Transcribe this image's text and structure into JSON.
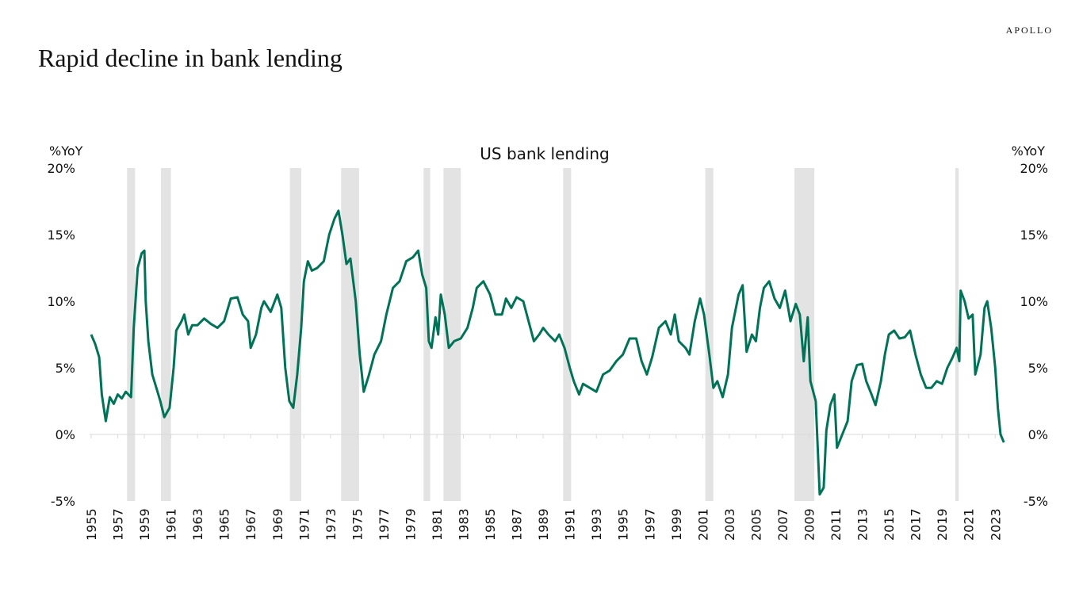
{
  "brand": "APOLLO",
  "chart_data": {
    "type": "line",
    "title": "Rapid decline in bank lending",
    "subtitle": "US bank lending",
    "y_label": "%YoY",
    "y2_label": "%YoY",
    "color": "#007356",
    "recession_color": "#e3e3e3",
    "recessions": [
      [
        1957.7,
        1958.3
      ],
      [
        1960.25,
        1961.0
      ],
      [
        1969.95,
        1970.8
      ],
      [
        1973.8,
        1975.15
      ],
      [
        1980.0,
        1980.5
      ],
      [
        1981.5,
        1982.8
      ],
      [
        1990.5,
        1991.1
      ],
      [
        2001.2,
        2001.8
      ],
      [
        2007.9,
        2009.4
      ],
      [
        2020.0,
        2020.25
      ]
    ],
    "xlim": [
      1955,
      2023.7
    ],
    "xticks": [
      1955,
      1957,
      1959,
      1961,
      1963,
      1965,
      1967,
      1969,
      1971,
      1973,
      1975,
      1977,
      1979,
      1981,
      1983,
      1985,
      1987,
      1989,
      1991,
      1993,
      1995,
      1997,
      1999,
      2001,
      2003,
      2005,
      2007,
      2009,
      2011,
      2013,
      2015,
      2017,
      2019,
      2021,
      2023
    ],
    "ylim": [
      -5,
      20
    ],
    "yticks": [
      {
        "value": -5,
        "label": "-5%"
      },
      {
        "value": 0,
        "label": "0%"
      },
      {
        "value": 5,
        "label": "5%"
      },
      {
        "value": 10,
        "label": "10%"
      },
      {
        "value": 15,
        "label": "15%"
      },
      {
        "value": 20,
        "label": "20%"
      }
    ],
    "x": [
      1955.0,
      1955.3,
      1955.6,
      1955.8,
      1956.1,
      1956.4,
      1956.7,
      1957.0,
      1957.3,
      1957.6,
      1958.0,
      1958.2,
      1958.5,
      1958.8,
      1959.0,
      1959.1,
      1959.3,
      1959.6,
      1959.9,
      1960.2,
      1960.5,
      1960.9,
      1961.2,
      1961.4,
      1961.8,
      1962.0,
      1962.3,
      1962.6,
      1963.0,
      1963.5,
      1964.0,
      1964.5,
      1965.0,
      1965.5,
      1966.0,
      1966.4,
      1966.8,
      1967.0,
      1967.4,
      1967.8,
      1968.0,
      1968.5,
      1969.0,
      1969.3,
      1969.6,
      1969.9,
      1970.2,
      1970.5,
      1970.8,
      1971.0,
      1971.3,
      1971.6,
      1972.0,
      1972.5,
      1972.9,
      1973.3,
      1973.6,
      1973.9,
      1974.2,
      1974.5,
      1974.9,
      1975.2,
      1975.5,
      1975.9,
      1976.3,
      1976.8,
      1977.2,
      1977.7,
      1978.2,
      1978.7,
      1979.2,
      1979.6,
      1979.9,
      1980.2,
      1980.4,
      1980.6,
      1980.9,
      1981.1,
      1981.3,
      1981.6,
      1981.9,
      1982.3,
      1982.8,
      1983.3,
      1983.7,
      1984.0,
      1984.5,
      1985.0,
      1985.4,
      1985.9,
      1986.2,
      1986.6,
      1987.0,
      1987.5,
      1987.9,
      1988.3,
      1988.7,
      1989.0,
      1989.4,
      1989.9,
      1990.2,
      1990.6,
      1991.0,
      1991.3,
      1991.7,
      1992.0,
      1992.5,
      1993.0,
      1993.5,
      1994.0,
      1994.5,
      1995.0,
      1995.5,
      1996.0,
      1996.4,
      1996.8,
      1997.2,
      1997.7,
      1998.2,
      1998.6,
      1998.9,
      1999.2,
      1999.7,
      2000.0,
      2000.4,
      2000.8,
      2001.1,
      2001.5,
      2001.8,
      2002.1,
      2002.5,
      2002.9,
      2003.2,
      2003.7,
      2004.0,
      2004.3,
      2004.7,
      2005.0,
      2005.3,
      2005.6,
      2006.0,
      2006.4,
      2006.8,
      2007.2,
      2007.6,
      2008.0,
      2008.3,
      2008.6,
      2008.9,
      2009.1,
      2009.5,
      2009.8,
      2010.1,
      2010.3,
      2010.6,
      2010.9,
      2011.1,
      2011.5,
      2011.9,
      2012.2,
      2012.6,
      2013.0,
      2013.3,
      2013.7,
      2014.0,
      2014.4,
      2014.7,
      2015.0,
      2015.4,
      2015.8,
      2016.2,
      2016.6,
      2017.0,
      2017.4,
      2017.8,
      2018.2,
      2018.6,
      2019.0,
      2019.4,
      2019.8,
      2020.1,
      2020.3,
      2020.4,
      2020.7,
      2021.0,
      2021.3,
      2021.5,
      2021.9,
      2022.2,
      2022.4,
      2022.7,
      2023.0,
      2023.2,
      2023.4,
      2023.65
    ],
    "series": [
      {
        "name": "US bank lending",
        "color": "#007356",
        "values": [
          7.5,
          6.8,
          5.8,
          3,
          1,
          2.8,
          2.3,
          3,
          2.7,
          3.2,
          2.8,
          8,
          12.5,
          13.6,
          13.8,
          10,
          7,
          4.5,
          3.5,
          2.5,
          1.3,
          2,
          5,
          7.8,
          8.5,
          9,
          7.5,
          8.2,
          8.2,
          8.7,
          8.3,
          8.0,
          8.5,
          10.2,
          10.3,
          9.0,
          8.5,
          6.5,
          7.5,
          9.5,
          10,
          9.2,
          10.5,
          9.5,
          5,
          2.5,
          2,
          4.5,
          8,
          11.5,
          13,
          12.3,
          12.5,
          13,
          15,
          16.2,
          16.8,
          15,
          12.8,
          13.2,
          10,
          6,
          3.2,
          4.5,
          6,
          7,
          9,
          11,
          11.5,
          13,
          13.3,
          13.8,
          12,
          11,
          7,
          6.5,
          8.8,
          7.5,
          10.5,
          9,
          6.5,
          7,
          7.2,
          8,
          9.5,
          11,
          11.5,
          10.5,
          9,
          9,
          10.2,
          9.5,
          10.3,
          10,
          8.5,
          7,
          7.5,
          8,
          7.5,
          7,
          7.5,
          6.5,
          5,
          4,
          3,
          3.8,
          3.5,
          3.2,
          4.5,
          4.8,
          5.5,
          6,
          7.2,
          7.2,
          5.5,
          4.5,
          5.8,
          8,
          8.5,
          7.5,
          9,
          7,
          6.5,
          6,
          8.5,
          10.2,
          9,
          6,
          3.5,
          4,
          2.8,
          4.5,
          8,
          10.5,
          11.2,
          6.2,
          7.5,
          7,
          9.5,
          11,
          11.5,
          10.2,
          9.5,
          10.8,
          8.5,
          9.8,
          9,
          5.5,
          8.8,
          4,
          2.5,
          -4.5,
          -4,
          0.3,
          2.2,
          3,
          -1,
          0,
          1,
          4,
          5.2,
          5.3,
          4,
          3,
          2.2,
          4,
          6,
          7.5,
          7.8,
          7.2,
          7.3,
          7.8,
          6,
          4.5,
          3.5,
          3.5,
          4,
          3.8,
          5,
          5.8,
          6.5,
          5.5,
          10.8,
          10,
          8.7,
          9,
          4.5,
          6,
          9.5,
          10,
          8,
          5,
          2,
          0,
          -0.6
        ]
      }
    ]
  }
}
